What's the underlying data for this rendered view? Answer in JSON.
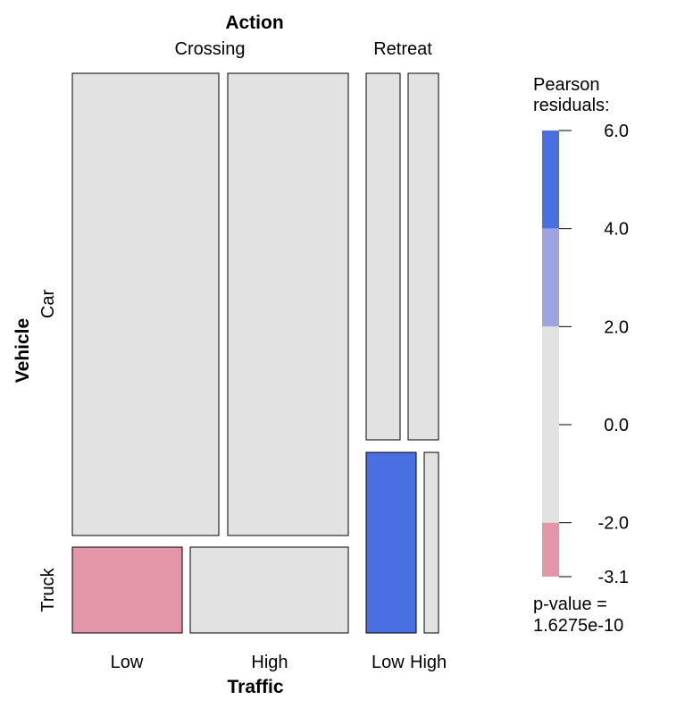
{
  "chart_data": {
    "type": "mosaic",
    "factors": {
      "top": {
        "name": "Action",
        "levels": [
          "Crossing",
          "Retreat"
        ]
      },
      "left": {
        "name": "Vehicle",
        "levels": [
          "Car",
          "Truck"
        ]
      },
      "bottom": {
        "name": "Traffic",
        "levels": [
          "Low",
          "High",
          "Low",
          "High"
        ]
      }
    },
    "cells": [
      {
        "action": "Crossing",
        "vehicle": "Car",
        "traffic": "Low",
        "residual_band": "-2 to 2"
      },
      {
        "action": "Crossing",
        "vehicle": "Car",
        "traffic": "High",
        "residual_band": "-2 to 2"
      },
      {
        "action": "Retreat",
        "vehicle": "Car",
        "traffic": "Low",
        "residual_band": "-2 to 2"
      },
      {
        "action": "Retreat",
        "vehicle": "Car",
        "traffic": "High",
        "residual_band": "-2 to 2"
      },
      {
        "action": "Crossing",
        "vehicle": "Truck",
        "traffic": "Low",
        "residual_band": "< -2"
      },
      {
        "action": "Crossing",
        "vehicle": "Truck",
        "traffic": "High",
        "residual_band": "-2 to 2"
      },
      {
        "action": "Retreat",
        "vehicle": "Truck",
        "traffic": "Low",
        "residual_band": "> 4"
      },
      {
        "action": "Retreat",
        "vehicle": "Truck",
        "traffic": "High",
        "residual_band": "-2 to 2"
      }
    ],
    "legend": {
      "title_line1": "Pearson",
      "title_line2": "residuals:",
      "ticks": [
        {
          "value": 6.0,
          "label": "6.0"
        },
        {
          "value": 4.0,
          "label": "4.0"
        },
        {
          "value": 2.0,
          "label": "2.0"
        },
        {
          "value": 0.0,
          "label": "0.0"
        },
        {
          "value": -2.0,
          "label": "-2.0"
        },
        {
          "value": -3.1,
          "label": "-3.1"
        }
      ],
      "range": [
        -3.1,
        6.0
      ],
      "bands": [
        {
          "from": 4.0,
          "to": 6.0,
          "color": "#4a6fe3"
        },
        {
          "from": 2.0,
          "to": 4.0,
          "color": "#9da4e0"
        },
        {
          "from": -2.0,
          "to": 2.0,
          "color": "#e2e2e2"
        },
        {
          "from": -3.1,
          "to": -2.0,
          "color": "#e296a8"
        }
      ],
      "pvalue_line1": "p-value =",
      "pvalue_line2": "1.6275e-10"
    }
  }
}
